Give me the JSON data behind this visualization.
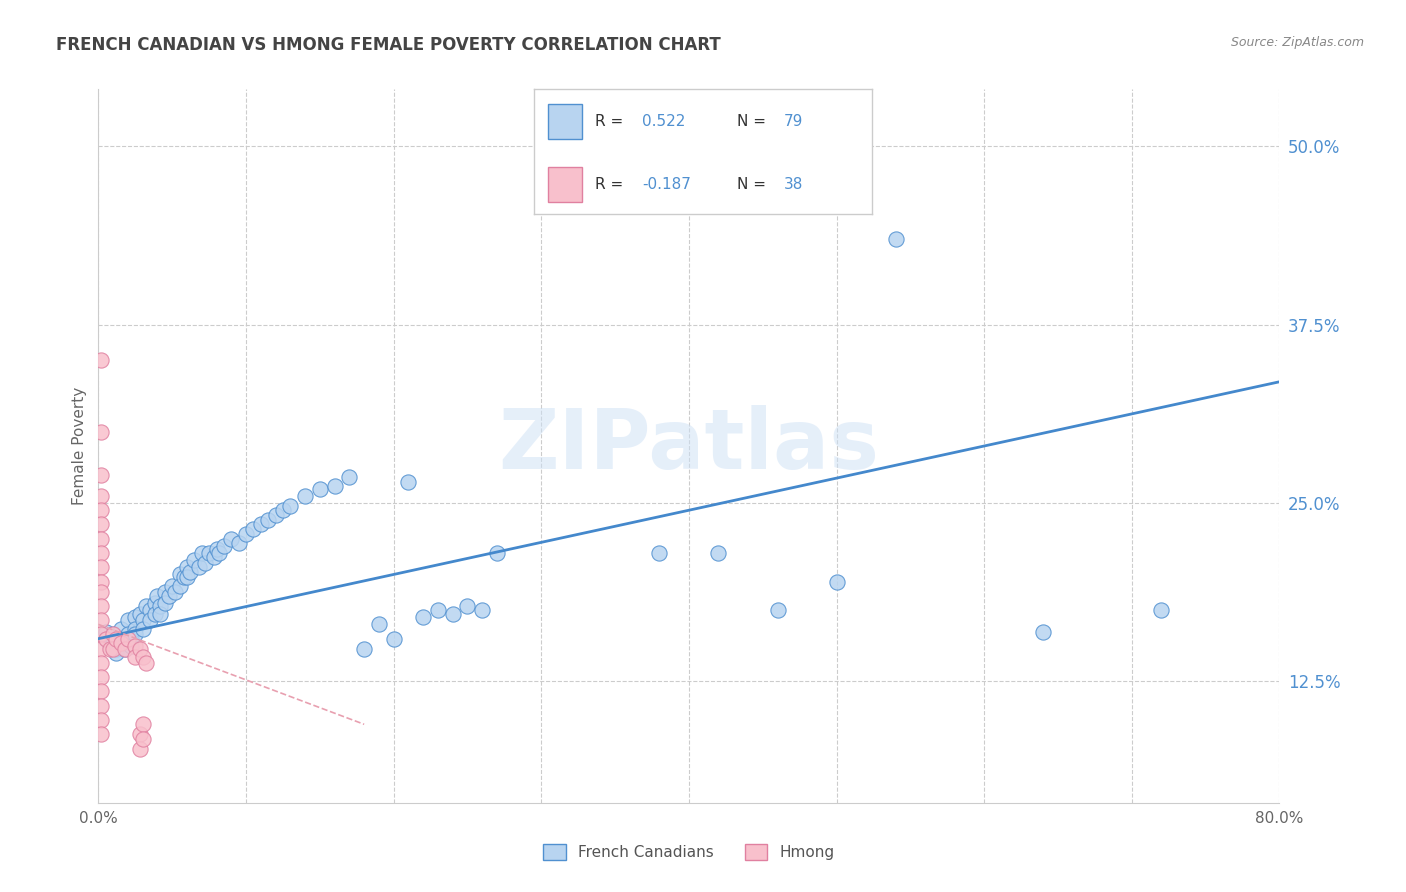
{
  "title": "FRENCH CANADIAN VS HMONG FEMALE POVERTY CORRELATION CHART",
  "source": "Source: ZipAtlas.com",
  "ylabel": "Female Poverty",
  "y_ticks": [
    0.125,
    0.25,
    0.375,
    0.5
  ],
  "y_tick_labels": [
    "12.5%",
    "25.0%",
    "37.5%",
    "50.0%"
  ],
  "xlim": [
    0.0,
    0.8
  ],
  "ylim": [
    0.04,
    0.54
  ],
  "r_french": "0.522",
  "n_french": "79",
  "r_hmong": "-0.187",
  "n_hmong": "38",
  "legend_labels": [
    "French Canadians",
    "Hmong"
  ],
  "french_color": "#b8d4f0",
  "hmong_color": "#f8c0cc",
  "french_edge_color": "#5090d0",
  "hmong_edge_color": "#e080a0",
  "french_line_color": "#4488cc",
  "hmong_line_color": "#e8a0b0",
  "label_color": "#5090d0",
  "watermark": "ZIPatlas",
  "background_color": "#ffffff",
  "grid_color": "#cccccc",
  "title_color": "#444444",
  "french_scatter": [
    [
      0.005,
      0.16
    ],
    [
      0.005,
      0.155
    ],
    [
      0.008,
      0.15
    ],
    [
      0.01,
      0.158
    ],
    [
      0.01,
      0.152
    ],
    [
      0.012,
      0.148
    ],
    [
      0.012,
      0.145
    ],
    [
      0.015,
      0.162
    ],
    [
      0.015,
      0.155
    ],
    [
      0.018,
      0.152
    ],
    [
      0.018,
      0.148
    ],
    [
      0.02,
      0.168
    ],
    [
      0.02,
      0.158
    ],
    [
      0.022,
      0.155
    ],
    [
      0.022,
      0.15
    ],
    [
      0.025,
      0.17
    ],
    [
      0.025,
      0.162
    ],
    [
      0.025,
      0.158
    ],
    [
      0.028,
      0.172
    ],
    [
      0.03,
      0.168
    ],
    [
      0.03,
      0.162
    ],
    [
      0.032,
      0.178
    ],
    [
      0.035,
      0.175
    ],
    [
      0.035,
      0.168
    ],
    [
      0.038,
      0.18
    ],
    [
      0.038,
      0.172
    ],
    [
      0.04,
      0.185
    ],
    [
      0.042,
      0.178
    ],
    [
      0.042,
      0.172
    ],
    [
      0.045,
      0.188
    ],
    [
      0.045,
      0.18
    ],
    [
      0.048,
      0.185
    ],
    [
      0.05,
      0.192
    ],
    [
      0.052,
      0.188
    ],
    [
      0.055,
      0.2
    ],
    [
      0.055,
      0.192
    ],
    [
      0.058,
      0.198
    ],
    [
      0.06,
      0.205
    ],
    [
      0.06,
      0.198
    ],
    [
      0.062,
      0.202
    ],
    [
      0.065,
      0.21
    ],
    [
      0.068,
      0.205
    ],
    [
      0.07,
      0.215
    ],
    [
      0.072,
      0.208
    ],
    [
      0.075,
      0.215
    ],
    [
      0.078,
      0.212
    ],
    [
      0.08,
      0.218
    ],
    [
      0.082,
      0.215
    ],
    [
      0.085,
      0.22
    ],
    [
      0.09,
      0.225
    ],
    [
      0.095,
      0.222
    ],
    [
      0.1,
      0.228
    ],
    [
      0.105,
      0.232
    ],
    [
      0.11,
      0.235
    ],
    [
      0.115,
      0.238
    ],
    [
      0.12,
      0.242
    ],
    [
      0.125,
      0.245
    ],
    [
      0.13,
      0.248
    ],
    [
      0.14,
      0.255
    ],
    [
      0.15,
      0.26
    ],
    [
      0.16,
      0.262
    ],
    [
      0.17,
      0.268
    ],
    [
      0.18,
      0.148
    ],
    [
      0.19,
      0.165
    ],
    [
      0.2,
      0.155
    ],
    [
      0.21,
      0.265
    ],
    [
      0.22,
      0.17
    ],
    [
      0.23,
      0.175
    ],
    [
      0.24,
      0.172
    ],
    [
      0.25,
      0.178
    ],
    [
      0.26,
      0.175
    ],
    [
      0.27,
      0.215
    ],
    [
      0.38,
      0.215
    ],
    [
      0.42,
      0.215
    ],
    [
      0.46,
      0.175
    ],
    [
      0.5,
      0.195
    ],
    [
      0.54,
      0.435
    ],
    [
      0.64,
      0.16
    ],
    [
      0.72,
      0.175
    ]
  ],
  "hmong_scatter": [
    [
      0.002,
      0.35
    ],
    [
      0.002,
      0.3
    ],
    [
      0.002,
      0.27
    ],
    [
      0.002,
      0.255
    ],
    [
      0.002,
      0.245
    ],
    [
      0.002,
      0.235
    ],
    [
      0.002,
      0.225
    ],
    [
      0.002,
      0.215
    ],
    [
      0.002,
      0.205
    ],
    [
      0.002,
      0.195
    ],
    [
      0.002,
      0.188
    ],
    [
      0.002,
      0.178
    ],
    [
      0.002,
      0.168
    ],
    [
      0.002,
      0.158
    ],
    [
      0.002,
      0.148
    ],
    [
      0.002,
      0.138
    ],
    [
      0.002,
      0.128
    ],
    [
      0.002,
      0.118
    ],
    [
      0.002,
      0.108
    ],
    [
      0.002,
      0.098
    ],
    [
      0.002,
      0.088
    ],
    [
      0.005,
      0.155
    ],
    [
      0.008,
      0.148
    ],
    [
      0.01,
      0.158
    ],
    [
      0.01,
      0.148
    ],
    [
      0.012,
      0.155
    ],
    [
      0.015,
      0.152
    ],
    [
      0.018,
      0.148
    ],
    [
      0.02,
      0.155
    ],
    [
      0.025,
      0.15
    ],
    [
      0.025,
      0.142
    ],
    [
      0.028,
      0.148
    ],
    [
      0.028,
      0.088
    ],
    [
      0.028,
      0.078
    ],
    [
      0.03,
      0.142
    ],
    [
      0.03,
      0.095
    ],
    [
      0.03,
      0.085
    ],
    [
      0.032,
      0.138
    ]
  ],
  "hmong_line_x": [
    0.0,
    0.18
  ],
  "hmong_line_start_y": 0.165,
  "hmong_line_end_y": 0.095
}
